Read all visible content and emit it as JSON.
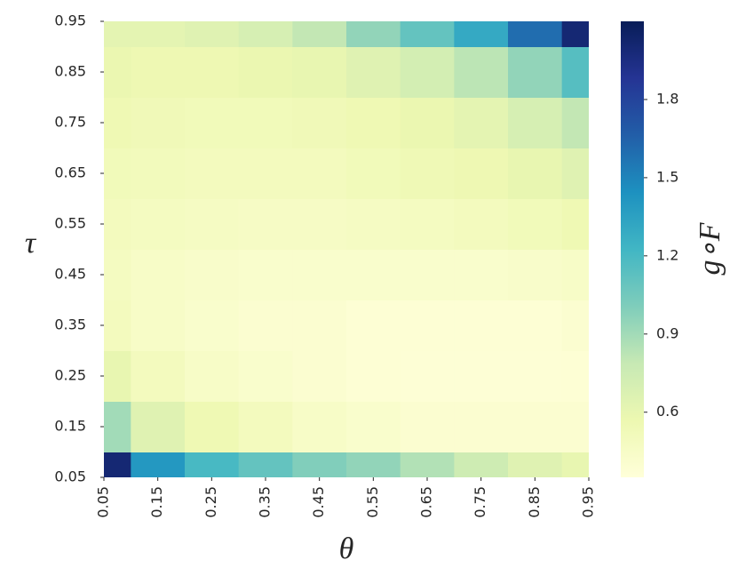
{
  "chart_data": {
    "type": "heatmap",
    "x_label": "θ",
    "y_label": "τ",
    "colorbar_label": "g∘F",
    "x": [
      0.05,
      0.15,
      0.25,
      0.35,
      0.45,
      0.55,
      0.65,
      0.75,
      0.85,
      0.95
    ],
    "y": [
      0.05,
      0.15,
      0.25,
      0.35,
      0.45,
      0.55,
      0.65,
      0.75,
      0.85,
      0.95
    ],
    "values": [
      [
        2.0,
        1.4,
        1.2,
        1.1,
        1.0,
        0.95,
        0.85,
        0.75,
        0.65,
        0.6
      ],
      [
        0.9,
        0.65,
        0.55,
        0.5,
        0.45,
        0.42,
        0.4,
        0.4,
        0.4,
        0.4
      ],
      [
        0.6,
        0.5,
        0.45,
        0.42,
        0.4,
        0.38,
        0.37,
        0.37,
        0.37,
        0.38
      ],
      [
        0.5,
        0.45,
        0.42,
        0.4,
        0.4,
        0.38,
        0.38,
        0.38,
        0.38,
        0.4
      ],
      [
        0.48,
        0.45,
        0.43,
        0.42,
        0.42,
        0.42,
        0.42,
        0.42,
        0.43,
        0.45
      ],
      [
        0.5,
        0.48,
        0.47,
        0.46,
        0.46,
        0.47,
        0.48,
        0.5,
        0.52,
        0.55
      ],
      [
        0.52,
        0.51,
        0.5,
        0.5,
        0.5,
        0.52,
        0.54,
        0.56,
        0.6,
        0.65
      ],
      [
        0.55,
        0.53,
        0.52,
        0.52,
        0.53,
        0.55,
        0.58,
        0.62,
        0.7,
        0.8
      ],
      [
        0.58,
        0.56,
        0.56,
        0.58,
        0.6,
        0.65,
        0.72,
        0.82,
        0.95,
        1.15
      ],
      [
        0.62,
        0.62,
        0.65,
        0.7,
        0.8,
        0.95,
        1.1,
        1.3,
        1.6,
        2.0
      ]
    ],
    "xlim": [
      0.05,
      0.95
    ],
    "ylim": [
      0.05,
      0.95
    ],
    "xticks": [
      0.05,
      0.15,
      0.25,
      0.35,
      0.45,
      0.55,
      0.65,
      0.75,
      0.85,
      0.95
    ],
    "yticks": [
      0.05,
      0.15,
      0.25,
      0.35,
      0.45,
      0.55,
      0.65,
      0.75,
      0.85,
      0.95
    ],
    "zlim": [
      0.35,
      2.1
    ],
    "zticks": [
      0.6,
      0.9,
      1.2,
      1.5,
      1.8
    ],
    "colormap": [
      "#ffffd9",
      "#edf8b1",
      "#c7e9b4",
      "#7fcdbb",
      "#41b6c4",
      "#1d91c0",
      "#225ea8",
      "#253494",
      "#081d58"
    ]
  }
}
